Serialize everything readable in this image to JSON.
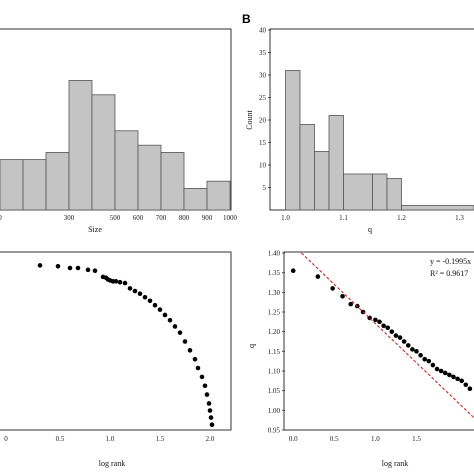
{
  "chart_data": [
    {
      "panel_label": "",
      "type": "bar",
      "xlabel": "Size",
      "ylabel": "",
      "x_edges": [
        0,
        100,
        200,
        300,
        400,
        500,
        600,
        700,
        800,
        900,
        1000
      ],
      "xlim": [
        0,
        1000
      ],
      "ylim": [
        0,
        25
      ],
      "x_tick_values": [
        0,
        300,
        500,
        600,
        700,
        800,
        900,
        1000
      ],
      "x_tick_labels": [
        "0",
        "300",
        "500",
        "600",
        "700",
        "800",
        "900",
        "1000"
      ],
      "bins": [
        {
          "x0": 0,
          "x1": 100,
          "count": 7
        },
        {
          "x0": 100,
          "x1": 200,
          "count": 7
        },
        {
          "x0": 200,
          "x1": 300,
          "count": 8
        },
        {
          "x0": 300,
          "x1": 400,
          "count": 18
        },
        {
          "x0": 400,
          "x1": 500,
          "count": 16
        },
        {
          "x0": 500,
          "x1": 600,
          "count": 11
        },
        {
          "x0": 600,
          "x1": 700,
          "count": 9
        },
        {
          "x0": 700,
          "x1": 800,
          "count": 8
        },
        {
          "x0": 800,
          "x1": 900,
          "count": 3
        },
        {
          "x0": 900,
          "x1": 1000,
          "count": 4
        }
      ],
      "grid": false
    },
    {
      "panel_label": "B",
      "type": "bar",
      "xlabel": "q",
      "ylabel": "Count",
      "xlim": [
        0.975,
        1.325
      ],
      "ylim": [
        0,
        40
      ],
      "y_tick_values": [
        5,
        10,
        15,
        20,
        25,
        30,
        35,
        40
      ],
      "y_tick_labels": [
        "5",
        "10",
        "15",
        "20",
        "25",
        "30",
        "35",
        "40"
      ],
      "x_tick_values": [
        1.0,
        1.1,
        1.2,
        1.3
      ],
      "x_tick_labels": [
        "1.0",
        "1.1",
        "1.2",
        "1.3"
      ],
      "bins": [
        {
          "x0": 1.0,
          "x1": 1.025,
          "count": 31
        },
        {
          "x0": 1.025,
          "x1": 1.05,
          "count": 19
        },
        {
          "x0": 1.05,
          "x1": 1.075,
          "count": 13
        },
        {
          "x0": 1.075,
          "x1": 1.1,
          "count": 21
        },
        {
          "x0": 1.1,
          "x1": 1.15,
          "count": 8
        },
        {
          "x0": 1.15,
          "x1": 1.175,
          "count": 8
        },
        {
          "x0": 1.175,
          "x1": 1.2,
          "count": 7
        },
        {
          "x0": 1.2,
          "x1": 1.325,
          "count": 1
        }
      ],
      "grid": false
    },
    {
      "panel_label": "",
      "type": "scatter",
      "xlabel": "log rank",
      "ylabel": "",
      "xlim": [
        -0.1,
        2.2
      ],
      "ylim": [
        0,
        1
      ],
      "x_tick_values": [
        0.5,
        1.0,
        1.5,
        2.0
      ],
      "x_tick_labels": [
        "0.5",
        "1.0",
        "1.5",
        "2.0"
      ],
      "x_tick_extra_labels": [
        "0"
      ],
      "points": [
        [
          0.3,
          0.93
        ],
        [
          0.48,
          0.925
        ],
        [
          0.6,
          0.915
        ],
        [
          0.68,
          0.915
        ],
        [
          0.78,
          0.905
        ],
        [
          0.85,
          0.9
        ],
        [
          0.93,
          0.865
        ],
        [
          0.96,
          0.86
        ],
        [
          0.98,
          0.85
        ],
        [
          1.0,
          0.845
        ],
        [
          1.03,
          0.84
        ],
        [
          1.06,
          0.84
        ],
        [
          1.1,
          0.835
        ],
        [
          1.15,
          0.83
        ],
        [
          1.2,
          0.8
        ],
        [
          1.25,
          0.785
        ],
        [
          1.3,
          0.77
        ],
        [
          1.35,
          0.75
        ],
        [
          1.4,
          0.73
        ],
        [
          1.45,
          0.705
        ],
        [
          1.5,
          0.68
        ],
        [
          1.55,
          0.65
        ],
        [
          1.6,
          0.62
        ],
        [
          1.65,
          0.585
        ],
        [
          1.7,
          0.55
        ],
        [
          1.75,
          0.5
        ],
        [
          1.8,
          0.45
        ],
        [
          1.85,
          0.4
        ],
        [
          1.88,
          0.35
        ],
        [
          1.92,
          0.3
        ],
        [
          1.95,
          0.25
        ],
        [
          1.97,
          0.2
        ],
        [
          1.99,
          0.15
        ],
        [
          2.0,
          0.11
        ],
        [
          2.01,
          0.07
        ],
        [
          2.02,
          0.03
        ]
      ],
      "grid": false
    },
    {
      "panel_label": "",
      "type": "scatter",
      "xlabel": "log rank",
      "ylabel": "q",
      "xlim": [
        -0.1,
        2.2
      ],
      "ylim": [
        0.95,
        1.4
      ],
      "y_tick_values": [
        0.95,
        1.0,
        1.05,
        1.1,
        1.15,
        1.2,
        1.25,
        1.3,
        1.35,
        1.4
      ],
      "y_tick_labels": [
        "0.95",
        "1.00",
        "1.05",
        "1.10",
        "1.15",
        "1.20",
        "1.25",
        "1.30",
        "1.35",
        "1.40"
      ],
      "x_tick_values": [
        0.0,
        0.5,
        1.0,
        1.5
      ],
      "x_tick_labels": [
        "0.0",
        "0.5",
        "1.0",
        "1.5"
      ],
      "points": [
        [
          0.0,
          1.355
        ],
        [
          0.3,
          1.34
        ],
        [
          0.48,
          1.31
        ],
        [
          0.6,
          1.29
        ],
        [
          0.7,
          1.27
        ],
        [
          0.78,
          1.265
        ],
        [
          0.85,
          1.25
        ],
        [
          0.93,
          1.235
        ],
        [
          1.0,
          1.23
        ],
        [
          1.05,
          1.225
        ],
        [
          1.1,
          1.215
        ],
        [
          1.15,
          1.21
        ],
        [
          1.2,
          1.2
        ],
        [
          1.25,
          1.19
        ],
        [
          1.3,
          1.185
        ],
        [
          1.35,
          1.175
        ],
        [
          1.4,
          1.165
        ],
        [
          1.45,
          1.155
        ],
        [
          1.5,
          1.15
        ],
        [
          1.55,
          1.14
        ],
        [
          1.6,
          1.13
        ],
        [
          1.65,
          1.125
        ],
        [
          1.7,
          1.115
        ],
        [
          1.75,
          1.105
        ],
        [
          1.8,
          1.1
        ],
        [
          1.85,
          1.095
        ],
        [
          1.9,
          1.09
        ],
        [
          1.95,
          1.085
        ],
        [
          2.0,
          1.08
        ],
        [
          2.05,
          1.075
        ],
        [
          2.1,
          1.065
        ],
        [
          2.15,
          1.055
        ]
      ],
      "fit_line": {
        "slope": -0.1995,
        "intercept": 1.42,
        "x_range": [
          0.1,
          2.2
        ]
      },
      "annotation": [
        "y = -0.1995x",
        "R² = 0.9617"
      ],
      "grid": false
    }
  ]
}
